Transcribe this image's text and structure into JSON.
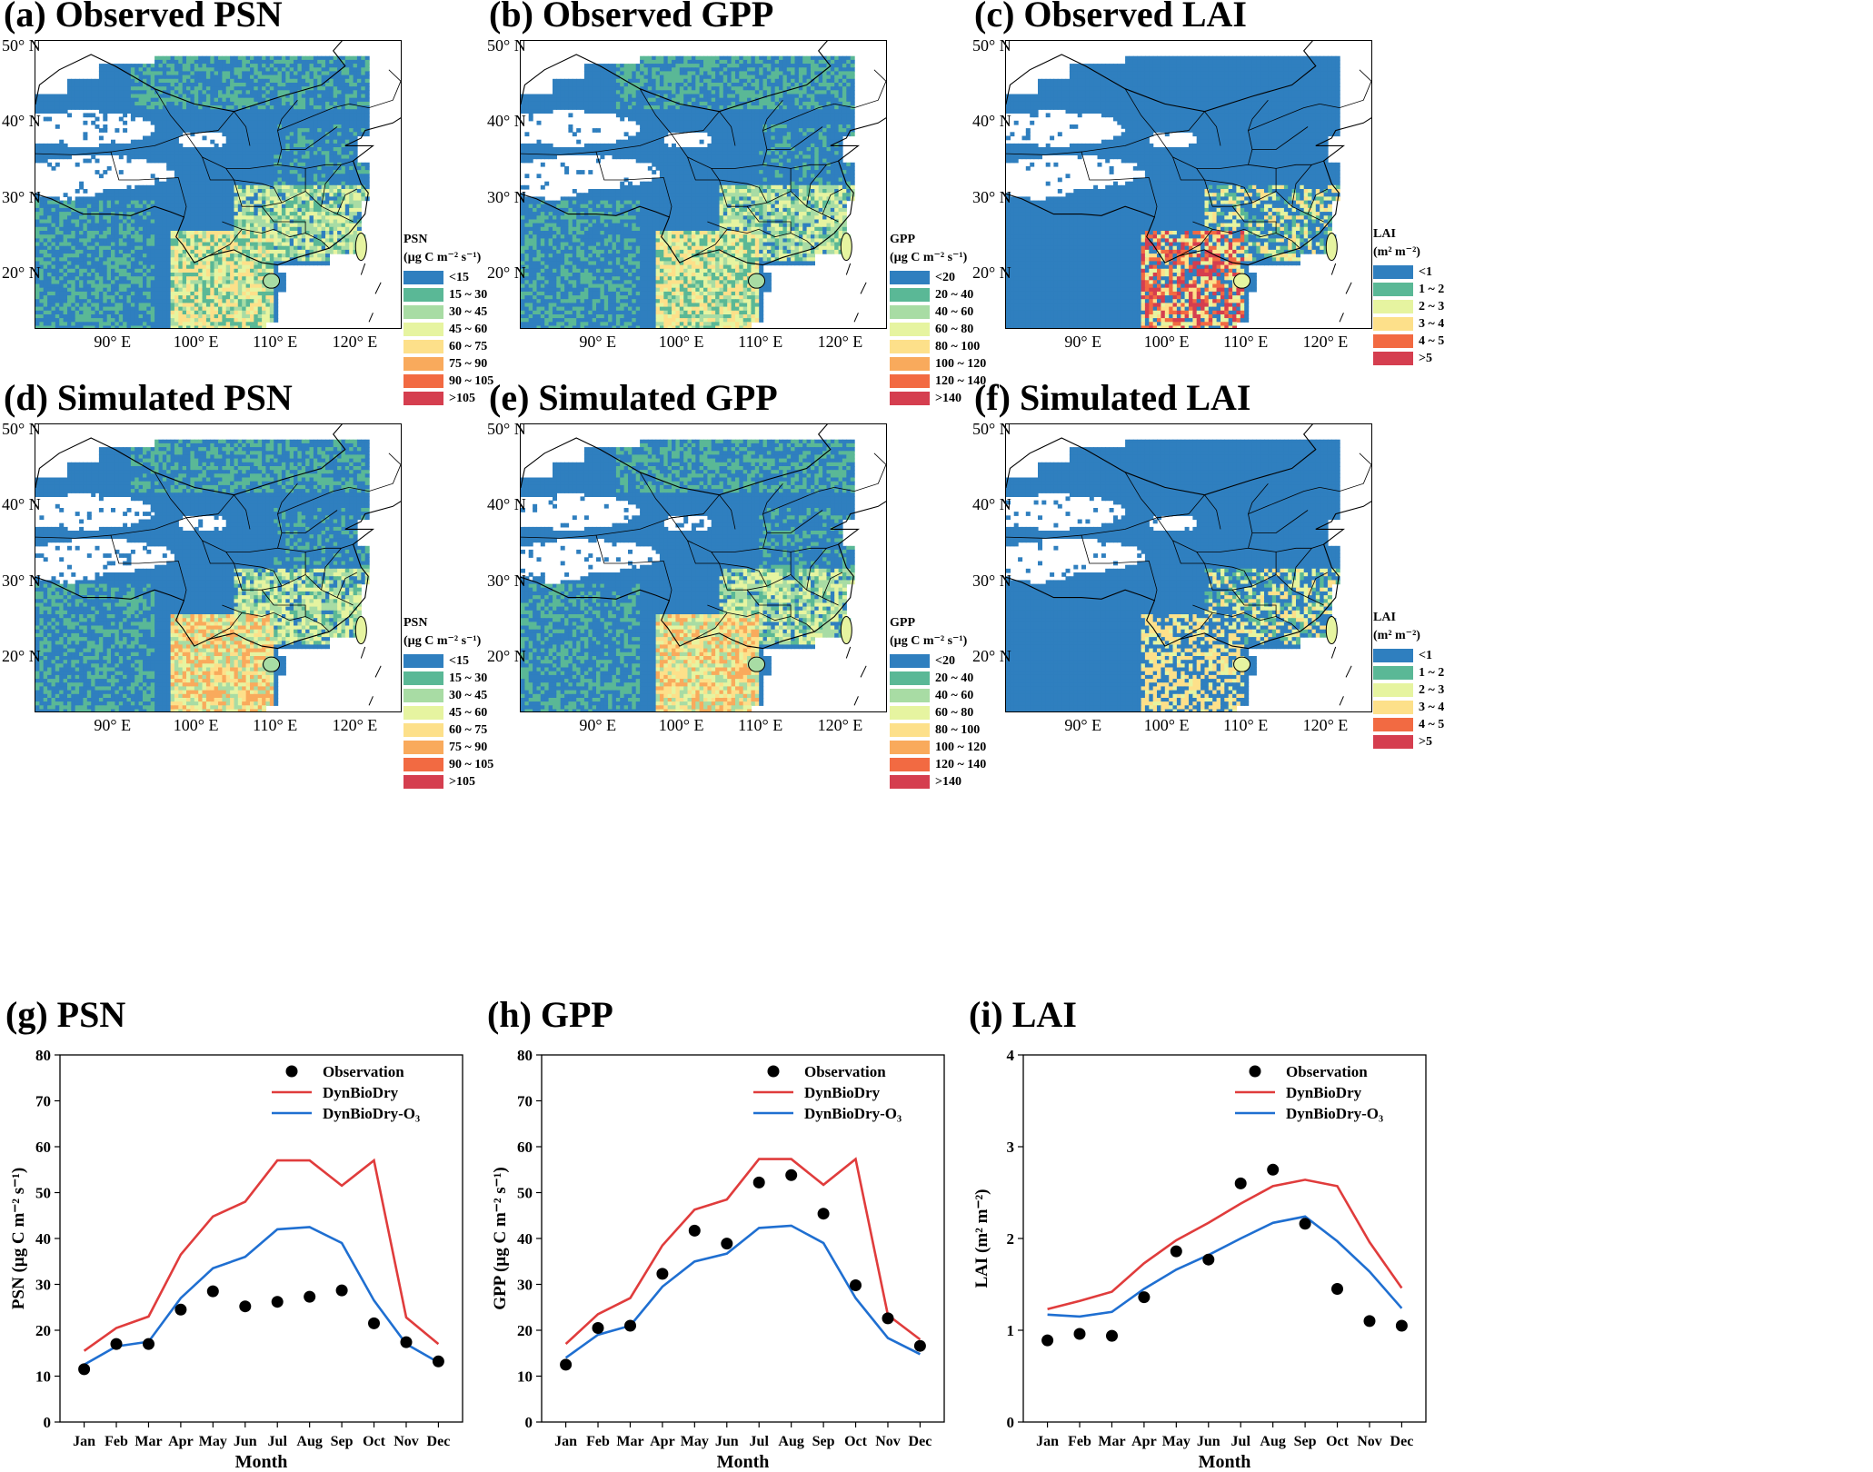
{
  "colors": {
    "ramp8": [
      "#2f7fbf",
      "#5ab896",
      "#a8dca4",
      "#e6f4a0",
      "#fde08a",
      "#f9aa5c",
      "#f26a42",
      "#d53e4f"
    ],
    "ramp6": [
      "#2f7fbf",
      "#5ab896",
      "#e6f4a0",
      "#fde08a",
      "#f26a42",
      "#d53e4f"
    ],
    "dynbiodry": "#e03c3c",
    "dynbiodry_o3": "#1f6fd1",
    "observation": "#000000"
  },
  "map_axes": {
    "lat_labels": [
      "50° N",
      "40° N",
      "30° N",
      "20° N"
    ],
    "lon_labels": [
      "90° E",
      "100° E",
      "110° E",
      "120° E"
    ]
  },
  "maps": [
    {
      "id": "a",
      "title": "(a) Observed PSN",
      "variable": "PSN",
      "legend_title_1": "PSN",
      "legend_title_2": "(µg C m⁻² s⁻¹)",
      "classes": [
        "<15",
        "15 ~ 30",
        "30 ~ 45",
        "45 ~ 60",
        "60 ~ 75",
        "75 ~ 90",
        "90 ~ 105",
        ">105"
      ]
    },
    {
      "id": "b",
      "title": "(b) Observed GPP",
      "variable": "GPP",
      "legend_title_1": "GPP",
      "legend_title_2": "(µg C m⁻² s⁻¹)",
      "classes": [
        "<20",
        "20 ~ 40",
        "40 ~ 60",
        "60 ~ 80",
        "80 ~ 100",
        "100 ~ 120",
        "120 ~ 140",
        ">140"
      ]
    },
    {
      "id": "c",
      "title": "(c) Observed LAI",
      "variable": "LAI",
      "legend_title_1": "LAI",
      "legend_title_2": "(m² m⁻²)",
      "classes": [
        "<1",
        "1 ~ 2",
        "2 ~ 3",
        "3 ~ 4",
        "4 ~ 5",
        ">5"
      ]
    },
    {
      "id": "d",
      "title": "(d) Simulated PSN",
      "variable": "PSN",
      "legend_title_1": "PSN",
      "legend_title_2": "(µg C m⁻² s⁻¹)",
      "classes": [
        "<15",
        "15 ~ 30",
        "30 ~ 45",
        "45 ~ 60",
        "60 ~ 75",
        "75 ~ 90",
        "90 ~ 105",
        ">105"
      ]
    },
    {
      "id": "e",
      "title": "(e) Simulated GPP",
      "variable": "GPP",
      "legend_title_1": "GPP",
      "legend_title_2": "(µg C m⁻² s⁻¹)",
      "classes": [
        "<20",
        "20 ~ 40",
        "40 ~ 60",
        "60 ~ 80",
        "80 ~ 100",
        "100 ~ 120",
        "120 ~ 140",
        ">140"
      ]
    },
    {
      "id": "f",
      "title": "(f) Simulated LAI",
      "variable": "LAI",
      "legend_title_1": "LAI",
      "legend_title_2": "(m² m⁻²)",
      "classes": [
        "<1",
        "1 ~ 2",
        "2 ~ 3",
        "3 ~ 4",
        "4 ~ 5",
        ">5"
      ]
    }
  ],
  "chart_data": [
    {
      "type": "line",
      "title": "(g) PSN",
      "xlabel": "Month",
      "ylabel": "PSN (µg C m⁻² s⁻¹)",
      "ylim": [
        0,
        80
      ],
      "yticks": [
        0,
        10,
        20,
        30,
        40,
        50,
        60,
        70,
        80
      ],
      "categories": [
        "Jan",
        "Feb",
        "Mar",
        "Apr",
        "May",
        "Jun",
        "Jul",
        "Aug",
        "Sep",
        "Oct",
        "Nov",
        "Dec"
      ],
      "legend_position": "top-right",
      "series": [
        {
          "name": "Observation",
          "kind": "scatter",
          "values": [
            11.5,
            17.0,
            17.0,
            24.5,
            28.5,
            25.2,
            26.2,
            27.3,
            28.7,
            21.5,
            17.4,
            13.2
          ]
        },
        {
          "name": "DynBioDry",
          "kind": "line",
          "values": [
            15.5,
            20.5,
            23.0,
            36.5,
            44.8,
            48.0,
            57.0,
            57.0,
            51.5,
            57.0,
            22.8,
            17.0
          ]
        },
        {
          "name": "DynBioDry-O₃",
          "kind": "line",
          "values": [
            12.5,
            16.5,
            17.5,
            27.0,
            33.5,
            36.0,
            42.0,
            42.5,
            39.0,
            26.5,
            17.0,
            13.0
          ]
        }
      ]
    },
    {
      "type": "line",
      "title": "(h) GPP",
      "xlabel": "Month",
      "ylabel": "GPP (µg C m⁻² s⁻¹)",
      "ylim": [
        0,
        80
      ],
      "yticks": [
        0,
        10,
        20,
        30,
        40,
        50,
        60,
        70,
        80
      ],
      "categories": [
        "Jan",
        "Feb",
        "Mar",
        "Apr",
        "May",
        "Jun",
        "Jul",
        "Aug",
        "Sep",
        "Oct",
        "Nov",
        "Dec"
      ],
      "legend_position": "top-right",
      "series": [
        {
          "name": "Observation",
          "kind": "scatter",
          "values": [
            12.5,
            20.5,
            21.0,
            32.3,
            41.7,
            38.9,
            52.2,
            53.8,
            45.4,
            29.8,
            22.6,
            16.6
          ]
        },
        {
          "name": "DynBioDry",
          "kind": "line",
          "values": [
            17.0,
            23.5,
            27.0,
            38.5,
            46.3,
            48.5,
            57.3,
            57.3,
            51.7,
            57.3,
            23.3,
            18.0
          ]
        },
        {
          "name": "DynBioDry-O₃",
          "kind": "line",
          "values": [
            14.0,
            19.0,
            21.0,
            29.5,
            35.0,
            36.7,
            42.3,
            42.8,
            39.0,
            27.0,
            18.3,
            14.8
          ]
        }
      ]
    },
    {
      "type": "line",
      "title": "(i) LAI",
      "xlabel": "Month",
      "ylabel": "LAI (m² m⁻²)",
      "ylim": [
        0,
        4
      ],
      "yticks": [
        0,
        1,
        2,
        3,
        4
      ],
      "categories": [
        "Jan",
        "Feb",
        "Mar",
        "Apr",
        "May",
        "Jun",
        "Jul",
        "Aug",
        "Sep",
        "Oct",
        "Nov",
        "Dec"
      ],
      "legend_position": "top-right",
      "series": [
        {
          "name": "Observation",
          "kind": "scatter",
          "values": [
            0.89,
            0.96,
            0.94,
            1.36,
            1.86,
            1.77,
            2.6,
            2.75,
            2.16,
            1.45,
            1.1,
            1.05
          ]
        },
        {
          "name": "DynBioDry",
          "kind": "line",
          "values": [
            1.23,
            1.32,
            1.42,
            1.73,
            1.98,
            2.17,
            2.38,
            2.57,
            2.64,
            2.57,
            1.96,
            1.46
          ]
        },
        {
          "name": "DynBioDry-O₃",
          "kind": "line",
          "values": [
            1.17,
            1.15,
            1.2,
            1.45,
            1.66,
            1.82,
            2.0,
            2.17,
            2.24,
            1.97,
            1.64,
            1.24
          ]
        }
      ]
    }
  ]
}
